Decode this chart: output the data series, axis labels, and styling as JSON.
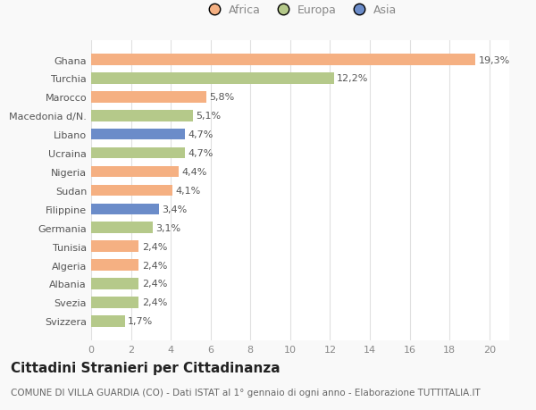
{
  "categories": [
    "Svizzera",
    "Svezia",
    "Albania",
    "Algeria",
    "Tunisia",
    "Germania",
    "Filippine",
    "Sudan",
    "Nigeria",
    "Ucraina",
    "Libano",
    "Macedonia d/N.",
    "Marocco",
    "Turchia",
    "Ghana"
  ],
  "values": [
    1.7,
    2.4,
    2.4,
    2.4,
    2.4,
    3.1,
    3.4,
    4.1,
    4.4,
    4.7,
    4.7,
    5.1,
    5.8,
    12.2,
    19.3
  ],
  "colors": [
    "#b5c98a",
    "#b5c98a",
    "#b5c98a",
    "#f5b082",
    "#f5b082",
    "#b5c98a",
    "#6b8cc9",
    "#f5b082",
    "#f5b082",
    "#b5c98a",
    "#6b8cc9",
    "#b5c98a",
    "#f5b082",
    "#b5c98a",
    "#f5b082"
  ],
  "labels": [
    "1,7%",
    "2,4%",
    "2,4%",
    "2,4%",
    "2,4%",
    "3,1%",
    "3,4%",
    "4,1%",
    "4,4%",
    "4,7%",
    "4,7%",
    "5,1%",
    "5,8%",
    "12,2%",
    "19,3%"
  ],
  "legend": [
    {
      "label": "Africa",
      "color": "#f5b082"
    },
    {
      "label": "Europa",
      "color": "#b5c98a"
    },
    {
      "label": "Asia",
      "color": "#6b8cc9"
    }
  ],
  "xlim": [
    0,
    21
  ],
  "xticks": [
    0,
    2,
    4,
    6,
    8,
    10,
    12,
    14,
    16,
    18,
    20
  ],
  "title": "Cittadini Stranieri per Cittadinanza",
  "subtitle": "COMUNE DI VILLA GUARDIA (CO) - Dati ISTAT al 1° gennaio di ogni anno - Elaborazione TUTTITALIA.IT",
  "bg_color": "#f9f9f9",
  "plot_bg_color": "#ffffff",
  "grid_color": "#e0e0e0",
  "bar_height": 0.6,
  "title_fontsize": 11,
  "subtitle_fontsize": 7.5,
  "label_fontsize": 8,
  "tick_fontsize": 8,
  "legend_fontsize": 9
}
